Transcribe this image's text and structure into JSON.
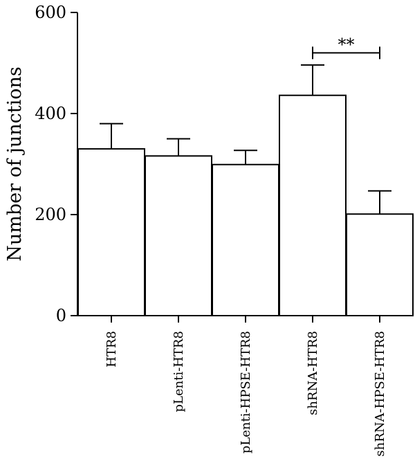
{
  "chart_data": {
    "type": "bar",
    "title": "",
    "xlabel": "",
    "ylabel": "Number of junctions",
    "ylim": [
      0,
      600
    ],
    "yticks": [
      "0",
      "200",
      "400",
      "600"
    ],
    "grid": false,
    "categories": [
      "HTR8",
      "pLenti-HTR8",
      "pLenti-HPSE-HTR8",
      "shRNA-HTR8",
      "shRNA-HPSE-HTR8"
    ],
    "values": [
      330,
      316,
      299,
      436,
      201
    ],
    "errors": [
      50,
      34,
      28,
      60,
      46
    ],
    "colors": {
      "bar_fill": "#ffffff",
      "stroke": "#000000"
    },
    "significance": [
      {
        "from": "shRNA-HTR8",
        "to": "shRNA-HPSE-HTR8",
        "label": "**",
        "y": 520
      }
    ]
  }
}
